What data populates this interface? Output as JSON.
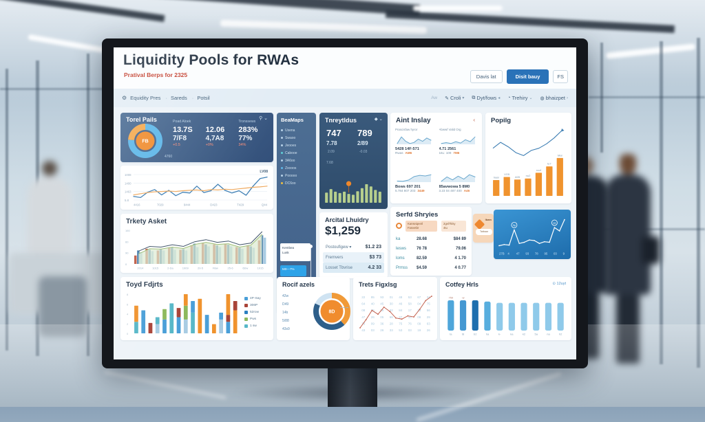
{
  "ui": {
    "header": {
      "title": "Liquidity Pools for RWAs",
      "subtitle": "Pratival Berps for 2325",
      "btn_secondary": "Davis lat",
      "btn_primary": "Disit bauy",
      "btn_icon": "FS"
    },
    "nav": {
      "prefix": "Aw",
      "breadcrumb": [
        "Equidity Pres",
        "Sareds",
        "Potsil"
      ],
      "right": [
        {
          "icon": "✎",
          "label": "Croli",
          "caret": "▾"
        },
        {
          "icon": "⧉",
          "label": "Dyt/fows",
          "caret": "◂"
        },
        {
          "icon": "◔",
          "label": "Trehiry",
          "caret": "⌄"
        },
        {
          "icon": "◍",
          "label": "bhaizpet",
          "caret": "›"
        }
      ]
    },
    "total_pools": {
      "title": "Torel Pails",
      "icons": "⚲ ⌄",
      "note": "4760",
      "col1": "Poad Aloek",
      "col2": "Tronssews",
      "r1": [
        "13.7S",
        "12.06",
        "283%"
      ],
      "r2": [
        "7/F8",
        "4,7A8",
        "77%"
      ],
      "deltas": [
        "+0.5",
        "+0%",
        "34%"
      ]
    },
    "beamaps": {
      "title": "BeaMaps",
      "items": [
        {
          "label": "Usena",
          "color": "#b8d2e8"
        },
        {
          "label": "Swaoo",
          "color": "#b8d2e8"
        },
        {
          "label": "Jeooes",
          "color": "#b8d2e8"
        },
        {
          "label": "Cabooe",
          "color": "#5fd0d8"
        },
        {
          "label": "3A6oo",
          "color": "#b8d2e8"
        },
        {
          "label": "Zxooos",
          "color": "#5fb8e8"
        },
        {
          "label": "Pooooo",
          "color": "#b8d2e8"
        },
        {
          "label": "DC6oo",
          "color": "#f0c040"
        }
      ],
      "card_line1": "Kembea",
      "card_line2": "Lusk",
      "highlight": "M0—7%",
      "sub1": "Asiey",
      "sub2": "Lowy",
      "bottom": "Ua"
    },
    "trerpt": {
      "title": "Tnreytldus",
      "icons": "◆ ⌄",
      "v1": "747",
      "v2": "789",
      "s1": "7.78",
      "s2": "2/89",
      "t1": "2.09",
      "t2": "-0.03",
      "t3": "7.68"
    },
    "aint": {
      "title": "Aint Inslay",
      "chevron": "‹",
      "cells": [
        {
          "label": "Prascisfaw hyror",
          "line1": "5428   14F-571",
          "sub": "Rwas",
          "sub_hl": "AM6"
        },
        {
          "label": "Abwwf Valid Org",
          "line1": "4.71   2561",
          "sub": "16L: 109",
          "sub_hl": "7M6"
        },
        {
          "label": "",
          "line1": "Bows  697  201",
          "sub": "5.784  807  203",
          "sub_hl": "3449"
        },
        {
          "label": "",
          "line1": "85avwowa  5 8M0",
          "sub": "3.23  04  487  400",
          "sub_hl": "A46"
        }
      ]
    },
    "popilg": {
      "title": "Popilg"
    },
    "trkety": {
      "title": "Trkety Asket"
    },
    "arcical": {
      "title": "Arcital Lhuidry",
      "amount": "$1,259",
      "rows": [
        {
          "label": "Postoufigew ▾",
          "value": "$1.2 23"
        },
        {
          "label": "Fremvers",
          "value": "$3 73"
        },
        {
          "label": "Losset Tbvrise",
          "value": "4.2 33"
        }
      ]
    },
    "serfd": {
      "title": "Serfd Shryies",
      "chip1a": "Kanseiqeetl",
      "chip1b": "Fasvetbr",
      "chip2a": "2gel7klsy",
      "chip2b": "4tu",
      "rows": [
        {
          "c0": "ka",
          "c1": "28.68",
          "c2": "$84 89"
        },
        {
          "c0": "lesws",
          "c1": "76 78",
          "c2": "79.06"
        },
        {
          "c0": "loms",
          "c1": "82.59",
          "c2": "4 1.70"
        },
        {
          "c0": "Prmss",
          "c1": "$4.59",
          "c2": "4 0.77"
        }
      ]
    },
    "tag": {
      "label": "Ibam",
      "pill": "Tatbaar"
    },
    "toyd": {
      "title": "Toyd Fdjrts",
      "legend": [
        {
          "label": "4P-Say",
          "color": "#4a9fd8"
        },
        {
          "label": "306P",
          "color": "#a94438"
        },
        {
          "label": "52row",
          "color": "#2b7fc0"
        },
        {
          "label": "Pws",
          "color": "#8db95c"
        },
        {
          "label": "1 sw",
          "color": "#58b8c8"
        }
      ]
    },
    "rocif": {
      "title": "Rocif azels",
      "labels": [
        "42w",
        "D49",
        "14b",
        "5/88",
        "43s9"
      ]
    },
    "trets": {
      "title": "Trets Figxlsg"
    },
    "cotfey": {
      "title": "Cotfey Hrls",
      "badge": "⊙ 12uyt"
    }
  },
  "colors": {
    "accent_blue": "#2a72b8",
    "accent_orange": "#f0932e",
    "dark_card": "#33507a",
    "subtitle_red": "#c23a28"
  },
  "chart_data": [
    {
      "id": "total-pools-donut",
      "type": "donut",
      "thick": 9,
      "center_color": "#f08c2e",
      "center_label": "FB",
      "slices": [
        {
          "label": "pool-main",
          "value": 76,
          "color": "#5cb6e8"
        },
        {
          "label": "pool-alt",
          "value": 24,
          "color": "#f4a94e"
        }
      ]
    },
    {
      "id": "main-trend",
      "type": "line",
      "grid": true,
      "legend": "LV08",
      "ylabels": [
        "1008",
        "1400",
        "1463",
        "5.8"
      ],
      "x": [
        "4416",
        "7029",
        "9444",
        "D423",
        "T429",
        "Q44"
      ],
      "series": [
        {
          "name": "pool-flow",
          "color": "#3d7eb3",
          "width": 1.3,
          "values": [
            1150,
            1120,
            1260,
            1330,
            1190,
            1310,
            1170,
            1260,
            1240,
            1420,
            1250,
            1300,
            1470,
            1310,
            1240,
            1300,
            1180,
            1420,
            1620,
            1660
          ]
        },
        {
          "name": "baseline",
          "color": "#efa95e",
          "width": 1.2,
          "values": [
            1190,
            1220,
            1250,
            1270,
            1280,
            1290,
            1280,
            1300,
            1310,
            1320,
            1300,
            1330,
            1320,
            1340,
            1330,
            1350,
            1370,
            1390,
            1400,
            1420
          ]
        }
      ]
    },
    {
      "id": "trerpt-bars",
      "type": "bars",
      "color": "#b7cf8d",
      "pin_index": 5,
      "pin_color": "#f0882a",
      "values": [
        46,
        62,
        50,
        44,
        50,
        40,
        36,
        52,
        66,
        84,
        74,
        58,
        50
      ]
    },
    {
      "id": "spark-a",
      "type": "line",
      "series": [
        {
          "color": "#69a7cd",
          "width": 1,
          "fill": "#dcebf5",
          "values": [
            3.0,
            3.6,
            3.2,
            3.0,
            3.1,
            3.4,
            3.2,
            3.5,
            3.3
          ]
        }
      ]
    },
    {
      "id": "spark-b",
      "type": "line",
      "series": [
        {
          "color": "#69a7cd",
          "width": 1,
          "fill": "#dcebf5",
          "values": [
            2.4,
            2.6,
            2.4,
            2.8,
            2.5,
            3.2,
            2.8,
            3.8
          ]
        }
      ]
    },
    {
      "id": "spark-c",
      "type": "line",
      "series": [
        {
          "color": "#69a7cd",
          "width": 1,
          "fill": "#dcebf5",
          "values": [
            1.2,
            1.1,
            1.5,
            2.6,
            3.0,
            2.8,
            3.2
          ]
        }
      ]
    },
    {
      "id": "spark-d",
      "type": "line",
      "series": [
        {
          "color": "#69a7cd",
          "width": 1,
          "fill": "#dcebf5",
          "values": [
            2.4,
            3.0,
            2.6,
            3.1,
            2.7,
            3.3,
            3.0
          ]
        }
      ]
    },
    {
      "id": "popilg",
      "type": "combo",
      "bars": {
        "color": "#f0932e",
        "values": [
          30,
          36,
          31,
          33,
          44,
          56,
          72
        ],
        "labels": [
          "haal",
          "VO5",
          "A05",
          "nu2",
          "roof",
          "tu7",
          "Mal"
        ]
      },
      "line": {
        "color": "#3d7eb3",
        "values": [
          58,
          66,
          60,
          52,
          48,
          55,
          58,
          64,
          72,
          82
        ]
      }
    },
    {
      "id": "trkety",
      "type": "grouped",
      "ylabels": [
        "160",
        "60",
        "90",
        "0"
      ],
      "x": [
        "2014",
        "1015",
        "2-Da",
        "1909",
        "20-5",
        "FBw",
        "25-6",
        "6Dw",
        "1015"
      ],
      "colors": [
        "#bf5b45",
        "#4a80ae",
        "#a9cce3"
      ],
      "groups": [
        [
          25,
          40,
          35
        ],
        [
          45,
          42,
          38
        ],
        [
          40,
          45,
          40
        ],
        [
          48,
          50,
          42
        ],
        [
          42,
          44,
          40
        ],
        [
          55,
          60,
          50
        ],
        [
          62,
          58,
          52
        ],
        [
          58,
          55,
          50
        ],
        [
          60,
          57,
          52
        ],
        [
          50,
          48,
          45
        ],
        [
          55,
          52,
          48
        ],
        [
          70,
          85,
          78
        ]
      ],
      "lines": [
        {
          "color": "#3c5166",
          "width": 1,
          "values": [
            38,
            52,
            50,
            57,
            52,
            66,
            72,
            64,
            68,
            57,
            62,
            96
          ]
        },
        {
          "color": "#9fbf77",
          "width": 1,
          "fill": "#dcead0",
          "values": [
            30,
            45,
            44,
            50,
            46,
            58,
            64,
            58,
            60,
            50,
            56,
            88
          ]
        }
      ]
    },
    {
      "id": "blue-line",
      "type": "line",
      "xcolor": "#cfe6f6",
      "x": [
        "27B",
        "4",
        "47",
        "93",
        "78",
        "95",
        "03",
        "9"
      ],
      "annotations": [
        {
          "i": 3,
          "label": "9p"
        },
        {
          "i": 11,
          "label": "99"
        }
      ],
      "series": [
        {
          "color": "#ffffff",
          "width": 1.2,
          "dots": true,
          "values": [
            2.0,
            2.1,
            2.05,
            3.4,
            2.2,
            2.3,
            2.5,
            2.45,
            2.2,
            2.35,
            2.3,
            3.6,
            3.3,
            4.3
          ]
        }
      ]
    },
    {
      "id": "toyd",
      "type": "stacked",
      "ylabels": [
        "8",
        "6",
        "4",
        "2",
        "0"
      ],
      "bars": [
        [
          {
            "v": 10,
            "c": "#58b8c8"
          },
          {
            "v": 14,
            "c": "#f0932e"
          }
        ],
        [
          {
            "v": 20,
            "c": "#4a9fd8"
          }
        ],
        [
          {
            "v": 9,
            "c": "#a94438"
          }
        ],
        [
          {
            "v": 8,
            "c": "#a9cce3"
          },
          {
            "v": 6,
            "c": "#58b8c8"
          }
        ],
        [
          {
            "v": 12,
            "c": "#4a9fd8"
          },
          {
            "v": 9,
            "c": "#8db95c"
          }
        ],
        [
          {
            "v": 26,
            "c": "#58b8c8"
          }
        ],
        [
          {
            "v": 14,
            "c": "#4a9fd8"
          },
          {
            "v": 8,
            "c": "#a94438"
          }
        ],
        [
          {
            "v": 12,
            "c": "#a9cce3"
          },
          {
            "v": 12,
            "c": "#8db95c"
          },
          {
            "v": 10,
            "c": "#f0932e"
          }
        ],
        [
          {
            "v": 18,
            "c": "#58b8c8"
          },
          {
            "v": 10,
            "c": "#4a9fd8"
          }
        ],
        [
          {
            "v": 30,
            "c": "#f0932e"
          }
        ],
        [
          {
            "v": 16,
            "c": "#4a9fd8"
          }
        ],
        [
          {
            "v": 8,
            "c": "#f0932e"
          }
        ],
        [
          {
            "v": 12,
            "c": "#a9cce3"
          },
          {
            "v": 6,
            "c": "#4a9fd8"
          }
        ],
        [
          {
            "v": 10,
            "c": "#4a9fd8"
          },
          {
            "v": 6,
            "c": "#a94438"
          },
          {
            "v": 18,
            "c": "#f0932e"
          }
        ],
        [
          {
            "v": 20,
            "c": "#f0932e"
          },
          {
            "v": 8,
            "c": "#a94438"
          }
        ]
      ]
    },
    {
      "id": "rocif-donut",
      "type": "donut",
      "thick": 8,
      "center_color": "#f08c2e",
      "center_label": "8D",
      "slices": [
        {
          "label": "a",
          "value": 38,
          "color": "#f09a38"
        },
        {
          "label": "b",
          "value": 44,
          "color": "#2e5f8a"
        },
        {
          "label": "c",
          "value": 18,
          "color": "#cfe3f2"
        }
      ]
    },
    {
      "id": "trets",
      "type": "calendar",
      "numbers": [
        [
          "22",
          "85",
          "93",
          "01",
          "48",
          "53",
          "67",
          "24"
        ],
        [
          "64",
          "40",
          "45",
          "30",
          "46",
          "58",
          "04",
          "75"
        ],
        [
          "08",
          "25",
          "19",
          "32",
          "84",
          "17",
          "23",
          "56"
        ],
        [
          "47",
          "26",
          "05",
          "68",
          "27",
          "34",
          "08",
          "29"
        ],
        [
          "76",
          "09",
          "36",
          "28",
          "75",
          "76",
          "09",
          "63"
        ],
        [
          "43",
          "03",
          "26",
          "33",
          "53",
          "03",
          "19",
          "26"
        ]
      ],
      "line": {
        "color": "#c2604d",
        "values": [
          30,
          45,
          62,
          55,
          68,
          60,
          48,
          46,
          52,
          50,
          64,
          80,
          88
        ]
      }
    },
    {
      "id": "cotfey",
      "type": "roundbars",
      "bars": [
        {
          "v": 92,
          "c": "#4fa6da"
        },
        {
          "v": 92,
          "c": "#4498d2"
        },
        {
          "v": 92,
          "c": "#1e6fae"
        },
        {
          "v": 88,
          "c": "#58aede"
        },
        {
          "v": 84,
          "c": "#8fcaea"
        },
        {
          "v": 84,
          "c": "#8fcaea"
        },
        {
          "v": 84,
          "c": "#8fcaea"
        },
        {
          "v": 84,
          "c": "#8fcaea"
        },
        {
          "v": 84,
          "c": "#8fcaea"
        },
        {
          "v": 84,
          "c": "#8fcaea"
        }
      ],
      "labels": [
        "ta",
        "t8",
        "b2",
        "ha",
        "k-",
        "ka",
        "k2",
        "5a",
        "na",
        "h2"
      ],
      "top_labels": [
        "759",
        "-w"
      ]
    }
  ]
}
